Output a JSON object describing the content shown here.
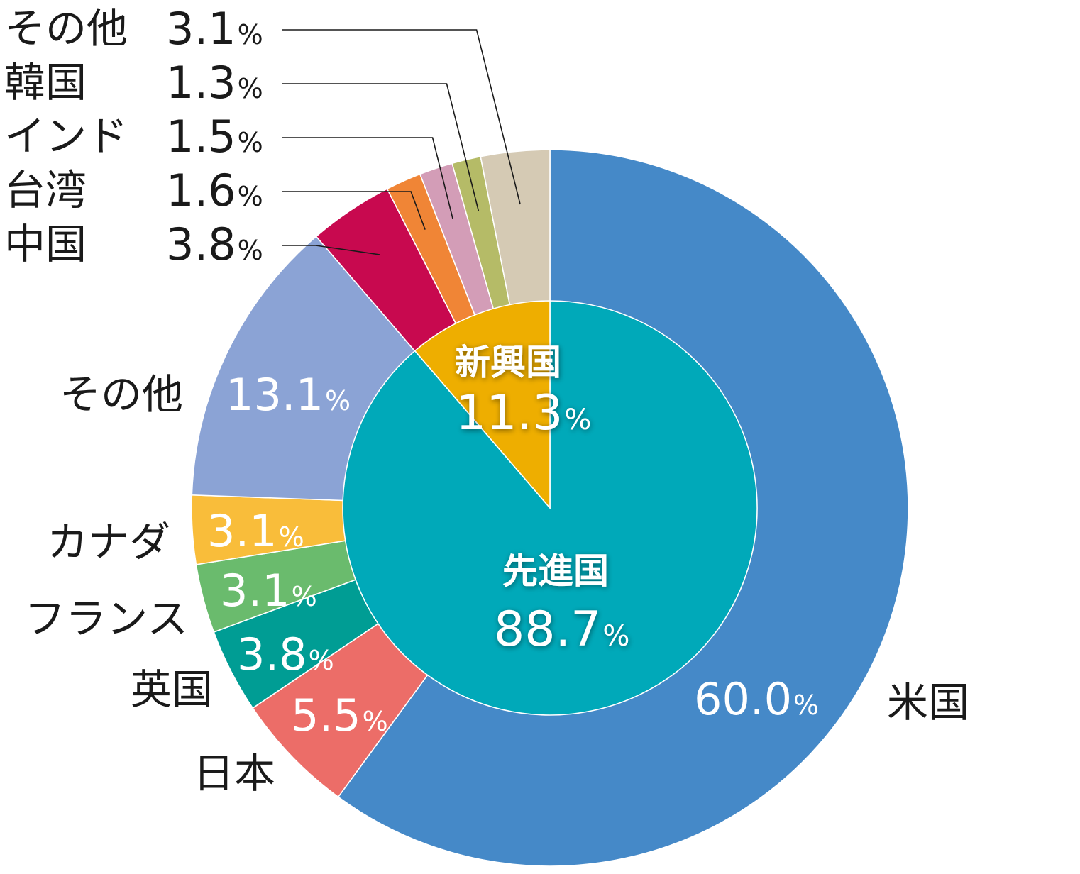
{
  "chart_data": {
    "type": "pie",
    "subtype": "nested-donut",
    "inner_ring": [
      {
        "label": "先進国",
        "value": 88.7,
        "display": "88.7",
        "unit": "%",
        "color": "#00A9B9"
      },
      {
        "label": "新興国",
        "value": 11.3,
        "display": "11.3",
        "unit": "%",
        "color": "#EEAE00"
      }
    ],
    "outer_ring": [
      {
        "label": "米国",
        "value": 60.0,
        "display": "60.0",
        "unit": "%",
        "color": "#4589C8",
        "label_style": "inside"
      },
      {
        "label": "日本",
        "value": 5.5,
        "display": "5.5",
        "unit": "%",
        "color": "#EC6D68",
        "label_style": "inside"
      },
      {
        "label": "英国",
        "value": 3.8,
        "display": "3.8",
        "unit": "%",
        "color": "#009D94",
        "label_style": "inside"
      },
      {
        "label": "フランス",
        "value": 3.1,
        "display": "3.1",
        "unit": "%",
        "color": "#6ABB6D",
        "label_style": "inside"
      },
      {
        "label": "カナダ",
        "value": 3.1,
        "display": "3.1",
        "unit": "%",
        "color": "#F9BD3A",
        "label_style": "inside"
      },
      {
        "label": "その他",
        "value": 13.1,
        "display": "13.1",
        "unit": "%",
        "color": "#8BA3D5",
        "label_style": "inside"
      },
      {
        "label": "中国",
        "value": 3.8,
        "display": "3.8",
        "unit": "%",
        "color": "#C8094F",
        "label_style": "legend"
      },
      {
        "label": "台湾",
        "value": 1.6,
        "display": "1.6",
        "unit": "%",
        "color": "#F08536",
        "label_style": "legend"
      },
      {
        "label": "インド",
        "value": 1.5,
        "display": "1.5",
        "unit": "%",
        "color": "#D39DB7",
        "label_style": "legend"
      },
      {
        "label": "韓国",
        "value": 1.3,
        "display": "1.3",
        "unit": "%",
        "color": "#B5BB67",
        "label_style": "legend"
      },
      {
        "label": "その他",
        "value": 3.1,
        "display": "3.1",
        "unit": "%",
        "color": "#D5CAB4",
        "label_style": "legend"
      }
    ]
  }
}
